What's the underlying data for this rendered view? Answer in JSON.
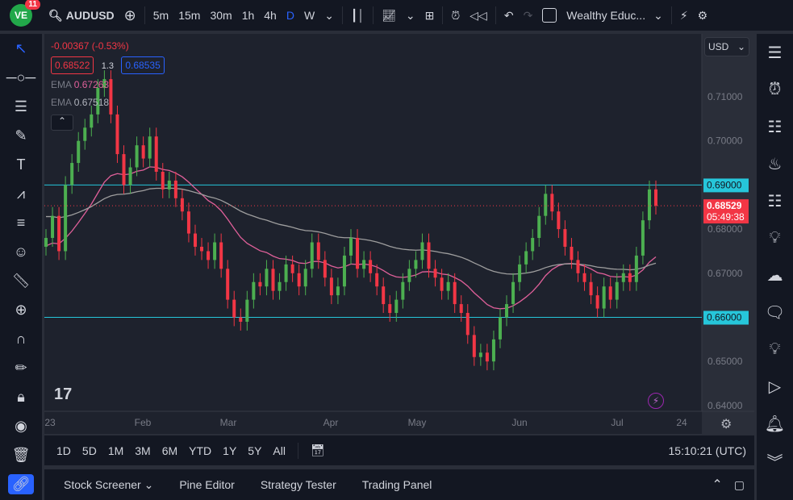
{
  "header": {
    "notifications": "11",
    "symbol": "AUDUSD",
    "intervals": [
      "5m",
      "15m",
      "30m",
      "1h",
      "4h",
      "D",
      "W"
    ],
    "active_interval": "D",
    "layout_name": "Wealthy Educ..."
  },
  "legend": {
    "change": "-0.00367 (-0.53%)",
    "bid": "0.68522",
    "spread": "1.3",
    "ask": "0.68535",
    "ema1_label": "EMA",
    "ema1_value": "0.67263",
    "ema2_label": "EMA",
    "ema2_value": "0.67518"
  },
  "price_axis": {
    "currency": "USD",
    "ticks": [
      "0.71000",
      "0.70000",
      "0.68000",
      "0.67000",
      "0.65000",
      "0.64000"
    ],
    "levels": [
      "0.69000",
      "0.66000"
    ],
    "last_price": "0.68529",
    "countdown": "05:49:38"
  },
  "time_axis": {
    "labels": [
      "23",
      "Feb",
      "Mar",
      "Apr",
      "May",
      "Jun",
      "Jul",
      "24"
    ]
  },
  "ranges": [
    "1D",
    "5D",
    "1M",
    "3M",
    "6M",
    "YTD",
    "1Y",
    "5Y",
    "All"
  ],
  "clock": "15:10:21 (UTC)",
  "bottom_tabs": [
    "Stock Screener",
    "Pine Editor",
    "Strategy Tester",
    "Trading Panel"
  ],
  "colors": {
    "up": "#4caf50",
    "down": "#f23645",
    "ema_fast": "#e0609a",
    "ema_slow": "#9e9e9e",
    "level": "#26c6da",
    "ask": "#2962ff"
  },
  "chart_data": {
    "type": "candlestick",
    "ylim": [
      0.64,
      0.715
    ],
    "horizontal_levels": [
      0.69,
      0.66
    ],
    "closes": [
      0.678,
      0.683,
      0.675,
      0.69,
      0.695,
      0.7,
      0.703,
      0.706,
      0.712,
      0.714,
      0.706,
      0.697,
      0.69,
      0.694,
      0.699,
      0.696,
      0.701,
      0.693,
      0.689,
      0.691,
      0.687,
      0.684,
      0.679,
      0.676,
      0.675,
      0.673,
      0.677,
      0.671,
      0.664,
      0.66,
      0.659,
      0.664,
      0.668,
      0.667,
      0.671,
      0.666,
      0.668,
      0.672,
      0.67,
      0.667,
      0.671,
      0.677,
      0.673,
      0.669,
      0.665,
      0.667,
      0.674,
      0.678,
      0.671,
      0.673,
      0.67,
      0.667,
      0.663,
      0.661,
      0.664,
      0.668,
      0.671,
      0.673,
      0.677,
      0.671,
      0.669,
      0.666,
      0.668,
      0.663,
      0.661,
      0.656,
      0.651,
      0.652,
      0.65,
      0.655,
      0.66,
      0.663,
      0.668,
      0.672,
      0.675,
      0.678,
      0.683,
      0.688,
      0.684,
      0.68,
      0.676,
      0.673,
      0.67,
      0.668,
      0.665,
      0.662,
      0.667,
      0.664,
      0.668,
      0.67,
      0.668,
      0.674,
      0.682,
      0.689,
      0.6853
    ]
  }
}
